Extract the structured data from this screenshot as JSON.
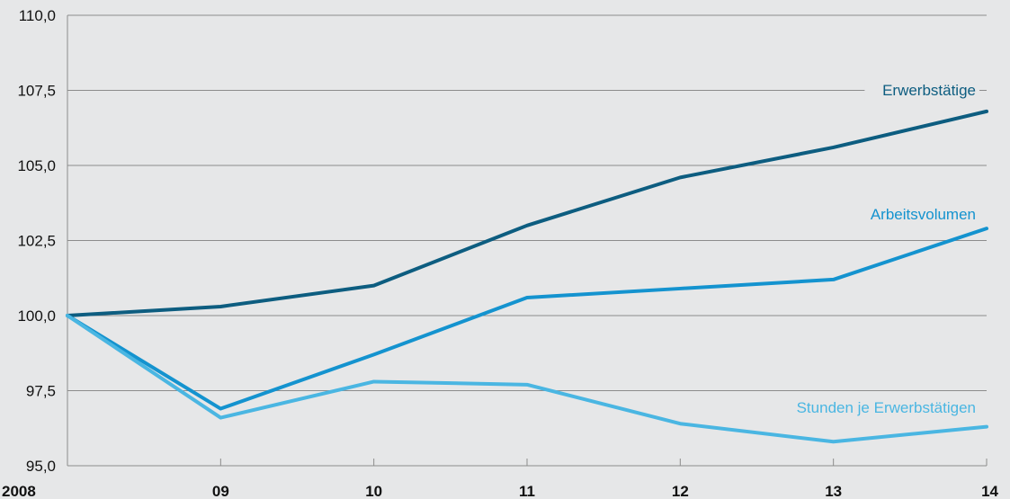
{
  "chart_data": {
    "type": "line",
    "x": [
      "2008",
      "09",
      "10",
      "11",
      "12",
      "13",
      "14"
    ],
    "y_ticks": [
      "95,0",
      "97,5",
      "100,0",
      "102,5",
      "105,0",
      "107,5",
      "110,0"
    ],
    "ylim": [
      95,
      110
    ],
    "grid": true,
    "series": [
      {
        "name": "Erwerbstätige",
        "color": "#0d5d80",
        "values": [
          100.0,
          100.3,
          101.0,
          103.0,
          104.6,
          105.6,
          106.8
        ]
      },
      {
        "name": "Arbeitsvolumen",
        "color": "#1493cf",
        "values": [
          100.0,
          96.9,
          98.7,
          100.6,
          100.9,
          101.2,
          102.9
        ]
      },
      {
        "name": "Stunden je Erwerbstätigen",
        "color": "#4ab6e2",
        "values": [
          100.0,
          96.6,
          97.8,
          97.7,
          96.4,
          95.8,
          96.3
        ]
      }
    ]
  }
}
